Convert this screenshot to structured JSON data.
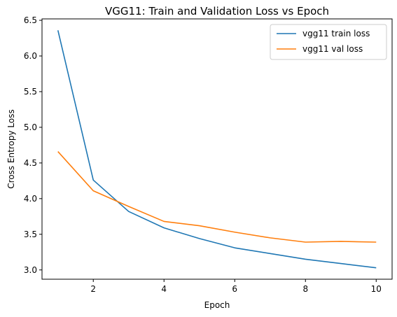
{
  "chart_data": {
    "type": "line",
    "title": "VGG11: Train and Validation Loss vs Epoch",
    "xlabel": "Epoch",
    "ylabel": "Cross Entropy Loss",
    "xlim": [
      0.55,
      10.45
    ],
    "ylim": [
      2.87,
      6.52
    ],
    "xticks": [
      2,
      4,
      6,
      8,
      10
    ],
    "yticks": [
      3.0,
      3.5,
      4.0,
      4.5,
      5.0,
      5.5,
      6.0,
      6.5
    ],
    "ytick_labels": [
      "3.0",
      "3.5",
      "4.0",
      "4.5",
      "5.0",
      "5.5",
      "6.0",
      "6.5"
    ],
    "grid": false,
    "legend": "upper-right",
    "x": [
      1,
      2,
      3,
      4,
      5,
      6,
      7,
      8,
      9,
      10
    ],
    "series": [
      {
        "name": "vgg11 train loss",
        "color": "#1f77b4",
        "values": [
          6.36,
          4.26,
          3.82,
          3.59,
          3.44,
          3.31,
          3.23,
          3.15,
          3.09,
          3.03
        ]
      },
      {
        "name": "vgg11 val loss",
        "color": "#ff7f0e",
        "values": [
          4.66,
          4.11,
          3.89,
          3.68,
          3.62,
          3.53,
          3.45,
          3.39,
          3.4,
          3.39
        ]
      }
    ]
  }
}
